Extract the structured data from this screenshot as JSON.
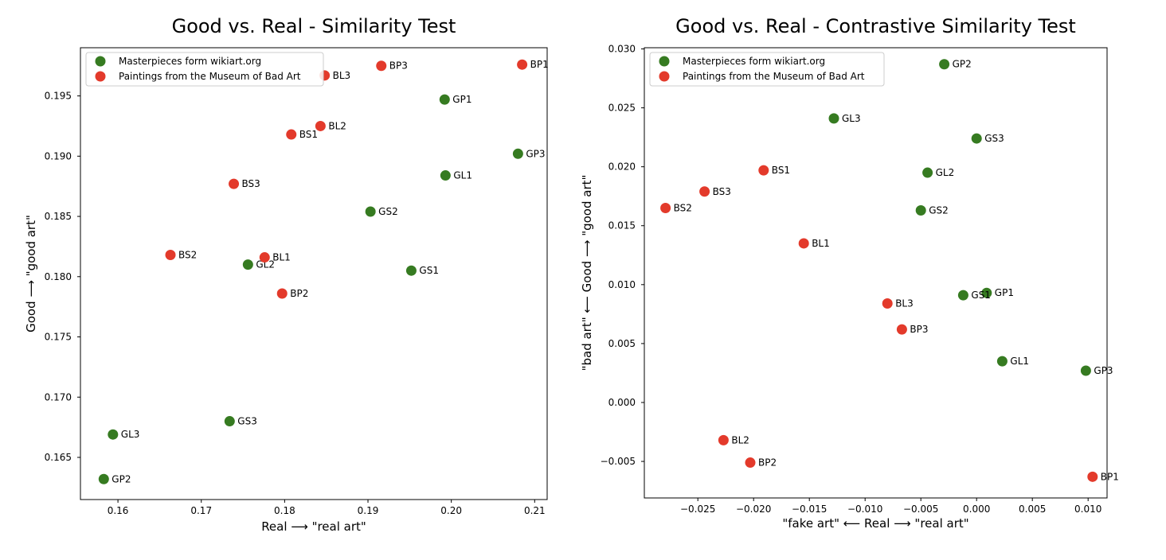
{
  "chart_data": [
    {
      "type": "scatter",
      "title": "Good vs. Real - Similarity Test",
      "xlabel": "Real ⟶ \"real art\"",
      "ylabel": "Good ⟶ \"good art\"",
      "xlim": [
        0.1555,
        0.2115
      ],
      "ylim": [
        0.1615,
        0.199
      ],
      "xticks": [
        0.16,
        0.17,
        0.18,
        0.19,
        0.2,
        0.21
      ],
      "xtick_labels": [
        "0.16",
        "0.17",
        "0.18",
        "0.19",
        "0.20",
        "0.21"
      ],
      "yticks": [
        0.165,
        0.17,
        0.175,
        0.18,
        0.185,
        0.19,
        0.195
      ],
      "ytick_labels": [
        "0.165",
        "0.170",
        "0.175",
        "0.180",
        "0.185",
        "0.190",
        "0.195"
      ],
      "legend_position": "top-left",
      "series": [
        {
          "name": "Masterpieces form wikiart.org",
          "color": "#367b21",
          "points": [
            {
              "label": "GP1",
              "x": 0.1992,
              "y": 0.1947
            },
            {
              "label": "GP2",
              "x": 0.1583,
              "y": 0.1632
            },
            {
              "label": "GP3",
              "x": 0.208,
              "y": 0.1902
            },
            {
              "label": "GL1",
              "x": 0.1993,
              "y": 0.1884
            },
            {
              "label": "GL2",
              "x": 0.1756,
              "y": 0.181
            },
            {
              "label": "GL3",
              "x": 0.1594,
              "y": 0.1669
            },
            {
              "label": "GS1",
              "x": 0.1952,
              "y": 0.1805
            },
            {
              "label": "GS2",
              "x": 0.1903,
              "y": 0.1854
            },
            {
              "label": "GS3",
              "x": 0.1734,
              "y": 0.168
            }
          ]
        },
        {
          "name": "Paintings from the Museum of Bad Art",
          "color": "#e33a2b",
          "points": [
            {
              "label": "BP1",
              "x": 0.2085,
              "y": 0.1976
            },
            {
              "label": "BP2",
              "x": 0.1797,
              "y": 0.1786
            },
            {
              "label": "BP3",
              "x": 0.1916,
              "y": 0.1975
            },
            {
              "label": "BL1",
              "x": 0.1776,
              "y": 0.1816
            },
            {
              "label": "BL2",
              "x": 0.1843,
              "y": 0.1925
            },
            {
              "label": "BL3",
              "x": 0.1848,
              "y": 0.1967
            },
            {
              "label": "BS1",
              "x": 0.1808,
              "y": 0.1918
            },
            {
              "label": "BS2",
              "x": 0.1663,
              "y": 0.1818
            },
            {
              "label": "BS3",
              "x": 0.1739,
              "y": 0.1877
            }
          ]
        }
      ]
    },
    {
      "type": "scatter",
      "title": "Good vs. Real - Contrastive Similarity Test",
      "xlabel": "\"fake art\" ⟵ Real ⟶ \"real art\"",
      "ylabel": "\"bad art\" ⟵ Good ⟶ \"good art\"",
      "xlim": [
        -0.0298,
        0.0117
      ],
      "ylim": [
        -0.0081,
        0.0301
      ],
      "xticks": [
        -0.025,
        -0.02,
        -0.015,
        -0.01,
        -0.005,
        0.0,
        0.005,
        0.01
      ],
      "xtick_labels": [
        "−0.025",
        "−0.020",
        "−0.015",
        "−0.010",
        "−0.005",
        "0.000",
        "0.005",
        "0.010"
      ],
      "yticks": [
        -0.005,
        0.0,
        0.005,
        0.01,
        0.015,
        0.02,
        0.025,
        0.03
      ],
      "ytick_labels": [
        "−0.005",
        "0.000",
        "0.005",
        "0.010",
        "0.015",
        "0.020",
        "0.025",
        "0.030"
      ],
      "legend_position": "top-left",
      "series": [
        {
          "name": "Masterpieces form wikiart.org",
          "color": "#367b21",
          "points": [
            {
              "label": "GP1",
              "x": 0.0009,
              "y": 0.0093
            },
            {
              "label": "GP2",
              "x": -0.0029,
              "y": 0.0287
            },
            {
              "label": "GP3",
              "x": 0.0098,
              "y": 0.0027
            },
            {
              "label": "GL1",
              "x": 0.0023,
              "y": 0.0035
            },
            {
              "label": "GL2",
              "x": -0.0044,
              "y": 0.0195
            },
            {
              "label": "GL3",
              "x": -0.0128,
              "y": 0.0241
            },
            {
              "label": "GS1",
              "x": -0.0012,
              "y": 0.0091
            },
            {
              "label": "GS2",
              "x": -0.005,
              "y": 0.0163
            },
            {
              "label": "GS3",
              "x": 0.0,
              "y": 0.0224
            }
          ]
        },
        {
          "name": "Paintings from the Museum of Bad Art",
          "color": "#e33a2b",
          "points": [
            {
              "label": "BP1",
              "x": 0.0104,
              "y": -0.0063
            },
            {
              "label": "BP2",
              "x": -0.0203,
              "y": -0.0051
            },
            {
              "label": "BP3",
              "x": -0.0067,
              "y": 0.0062
            },
            {
              "label": "BL1",
              "x": -0.0155,
              "y": 0.0135
            },
            {
              "label": "BL2",
              "x": -0.0227,
              "y": -0.0032
            },
            {
              "label": "BL3",
              "x": -0.008,
              "y": 0.0084
            },
            {
              "label": "BS1",
              "x": -0.0191,
              "y": 0.0197
            },
            {
              "label": "BS2",
              "x": -0.0279,
              "y": 0.0165
            },
            {
              "label": "BS3",
              "x": -0.0244,
              "y": 0.0179
            }
          ]
        }
      ]
    }
  ]
}
